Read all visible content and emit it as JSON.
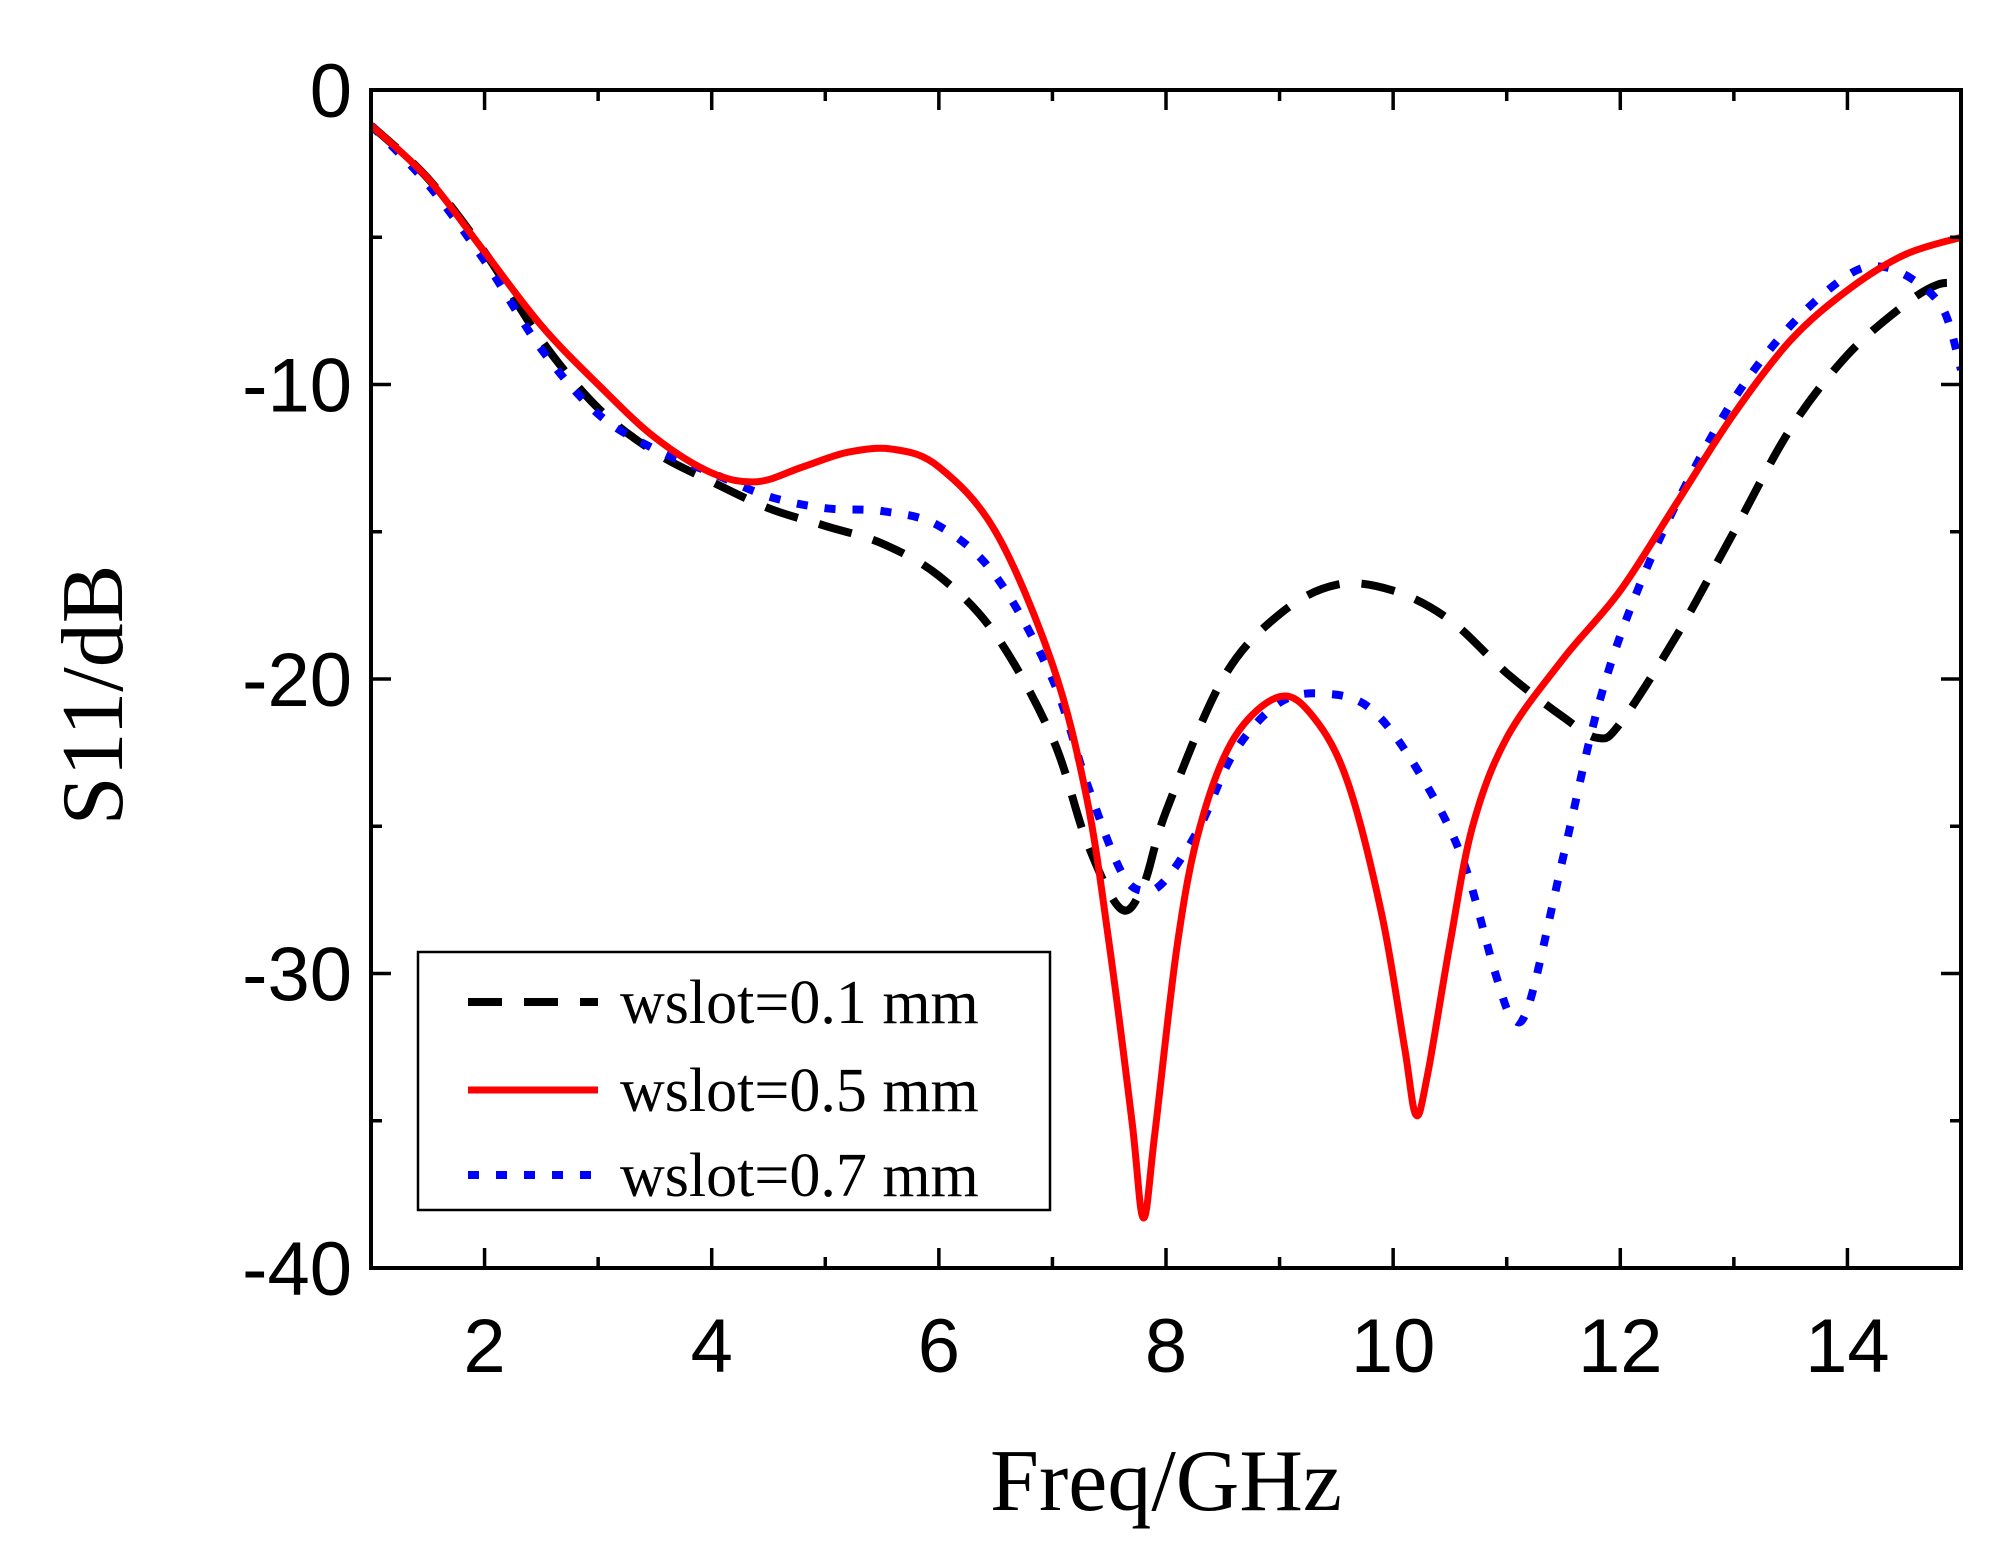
{
  "chart_data": {
    "type": "line",
    "title": "",
    "xlabel": "Freq/GHz",
    "ylabel": "S11/dB",
    "xlim": [
      1,
      15
    ],
    "ylim": [
      -40,
      0
    ],
    "xticks": [
      2,
      4,
      6,
      8,
      10,
      12,
      14
    ],
    "yticks": [
      0,
      -10,
      -20,
      -30,
      -40
    ],
    "grid": false,
    "legend_position": "bottom-left",
    "series": [
      {
        "name": "wslot=0.1 mm",
        "color": "#000000",
        "style": "dashed",
        "points": [
          [
            1.0,
            -1.2
          ],
          [
            1.5,
            -3.0
          ],
          [
            2.0,
            -5.5
          ],
          [
            2.5,
            -8.5
          ],
          [
            3.0,
            -10.8
          ],
          [
            3.5,
            -12.3
          ],
          [
            4.0,
            -13.3
          ],
          [
            4.5,
            -14.2
          ],
          [
            5.0,
            -14.8
          ],
          [
            5.5,
            -15.4
          ],
          [
            6.0,
            -16.5
          ],
          [
            6.5,
            -18.5
          ],
          [
            7.0,
            -22.0
          ],
          [
            7.3,
            -25.5
          ],
          [
            7.6,
            -27.8
          ],
          [
            7.8,
            -27.0
          ],
          [
            8.0,
            -24.5
          ],
          [
            8.5,
            -20.0
          ],
          [
            9.0,
            -17.8
          ],
          [
            9.5,
            -16.8
          ],
          [
            10.0,
            -17.0
          ],
          [
            10.5,
            -18.0
          ],
          [
            11.0,
            -19.8
          ],
          [
            11.5,
            -21.3
          ],
          [
            11.8,
            -22.0
          ],
          [
            12.0,
            -21.5
          ],
          [
            12.5,
            -18.5
          ],
          [
            13.0,
            -15.0
          ],
          [
            13.5,
            -11.5
          ],
          [
            14.0,
            -9.0
          ],
          [
            14.5,
            -7.3
          ],
          [
            14.8,
            -6.6
          ],
          [
            15.0,
            -6.6
          ]
        ]
      },
      {
        "name": "wslot=0.5 mm",
        "color": "#ff0000",
        "style": "solid",
        "points": [
          [
            1.0,
            -1.2
          ],
          [
            1.5,
            -3.0
          ],
          [
            2.0,
            -5.5
          ],
          [
            2.5,
            -8.0
          ],
          [
            3.0,
            -10.0
          ],
          [
            3.5,
            -11.8
          ],
          [
            4.0,
            -13.0
          ],
          [
            4.4,
            -13.3
          ],
          [
            4.8,
            -12.8
          ],
          [
            5.2,
            -12.3
          ],
          [
            5.6,
            -12.2
          ],
          [
            6.0,
            -12.8
          ],
          [
            6.5,
            -15.0
          ],
          [
            7.0,
            -19.5
          ],
          [
            7.3,
            -24.0
          ],
          [
            7.5,
            -29.0
          ],
          [
            7.7,
            -35.0
          ],
          [
            7.8,
            -38.3
          ],
          [
            7.9,
            -35.5
          ],
          [
            8.1,
            -29.0
          ],
          [
            8.3,
            -25.0
          ],
          [
            8.6,
            -22.0
          ],
          [
            9.0,
            -20.6
          ],
          [
            9.3,
            -21.3
          ],
          [
            9.6,
            -23.5
          ],
          [
            9.9,
            -28.0
          ],
          [
            10.1,
            -32.5
          ],
          [
            10.2,
            -34.8
          ],
          [
            10.3,
            -33.5
          ],
          [
            10.5,
            -29.0
          ],
          [
            10.7,
            -25.0
          ],
          [
            11.0,
            -22.0
          ],
          [
            11.5,
            -19.3
          ],
          [
            12.0,
            -17.0
          ],
          [
            12.5,
            -14.0
          ],
          [
            13.0,
            -11.0
          ],
          [
            13.5,
            -8.5
          ],
          [
            14.0,
            -6.8
          ],
          [
            14.5,
            -5.6
          ],
          [
            15.0,
            -5.0
          ]
        ]
      },
      {
        "name": "wslot=0.7 mm",
        "color": "#0000ff",
        "style": "dotted",
        "points": [
          [
            1.0,
            -1.2
          ],
          [
            1.5,
            -3.2
          ],
          [
            2.0,
            -5.8
          ],
          [
            2.5,
            -8.8
          ],
          [
            3.0,
            -11.0
          ],
          [
            3.5,
            -12.2
          ],
          [
            4.0,
            -13.0
          ],
          [
            4.5,
            -13.8
          ],
          [
            5.0,
            -14.2
          ],
          [
            5.5,
            -14.3
          ],
          [
            6.0,
            -14.8
          ],
          [
            6.5,
            -16.5
          ],
          [
            7.0,
            -20.0
          ],
          [
            7.3,
            -23.5
          ],
          [
            7.6,
            -26.5
          ],
          [
            7.8,
            -27.2
          ],
          [
            8.0,
            -26.8
          ],
          [
            8.3,
            -25.0
          ],
          [
            8.6,
            -22.5
          ],
          [
            9.0,
            -20.8
          ],
          [
            9.4,
            -20.5
          ],
          [
            9.8,
            -21.0
          ],
          [
            10.2,
            -23.0
          ],
          [
            10.6,
            -26.0
          ],
          [
            10.9,
            -30.0
          ],
          [
            11.05,
            -31.5
          ],
          [
            11.2,
            -31.0
          ],
          [
            11.5,
            -26.0
          ],
          [
            11.8,
            -21.0
          ],
          [
            12.1,
            -17.5
          ],
          [
            12.5,
            -14.0
          ],
          [
            13.0,
            -10.5
          ],
          [
            13.5,
            -8.0
          ],
          [
            14.0,
            -6.3
          ],
          [
            14.3,
            -6.0
          ],
          [
            14.6,
            -6.5
          ],
          [
            14.85,
            -7.5
          ],
          [
            15.0,
            -9.5
          ]
        ]
      }
    ]
  }
}
